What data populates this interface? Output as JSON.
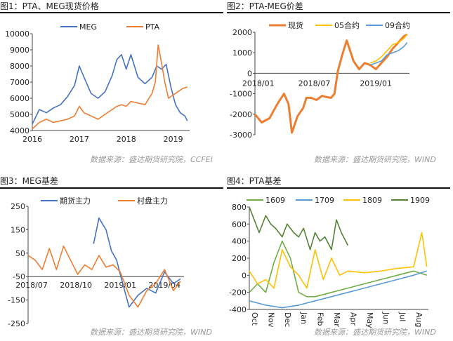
{
  "figures": [
    {
      "title": "图1：PTA、MEG现货价格"
    },
    {
      "title": "图2：PTA-MEG价差"
    },
    {
      "title": "图3：MEG基差"
    },
    {
      "title": "图4：PTA基差"
    }
  ],
  "sources": [
    "数据来源：盛达期货研究院，CCFEI",
    "数据来源：盛达期货研究院，WIND",
    "数据来源：盛达期货研究院，WIND",
    "数据来源：盛达期货研究院，WIND"
  ],
  "chart_data": [
    {
      "type": "line",
      "title": "",
      "ylim": [
        4000,
        10000
      ],
      "yticks": [
        "10000",
        "9000",
        "8000",
        "7000",
        "6000",
        "5000",
        "4000"
      ],
      "xticks": [
        "2016",
        "2017",
        "2018",
        "2019"
      ],
      "legend_position": "top",
      "series": [
        {
          "name": "MEG",
          "color": "#4472C4",
          "x": [
            2016.0,
            2016.15,
            2016.3,
            2016.45,
            2016.6,
            2016.75,
            2016.9,
            2017.0,
            2017.1,
            2017.25,
            2017.4,
            2017.55,
            2017.7,
            2017.8,
            2017.9,
            2018.0,
            2018.1,
            2018.25,
            2018.4,
            2018.55,
            2018.65,
            2018.75,
            2018.85,
            2018.95,
            2019.05,
            2019.15,
            2019.25,
            2019.3
          ],
          "y": [
            4400,
            5300,
            5100,
            5400,
            5600,
            6100,
            6800,
            8000,
            7300,
            6300,
            6000,
            6400,
            7400,
            8400,
            8700,
            7800,
            8700,
            7300,
            6900,
            7300,
            8000,
            7800,
            8100,
            6700,
            5600,
            5100,
            4900,
            4600
          ]
        },
        {
          "name": "PTA",
          "color": "#ED7D31",
          "x": [
            2016.0,
            2016.15,
            2016.3,
            2016.45,
            2016.6,
            2016.75,
            2016.9,
            2017.0,
            2017.1,
            2017.25,
            2017.4,
            2017.55,
            2017.7,
            2017.8,
            2017.9,
            2018.0,
            2018.1,
            2018.25,
            2018.4,
            2018.55,
            2018.62,
            2018.68,
            2018.75,
            2018.82,
            2018.9,
            2019.0,
            2019.1,
            2019.2,
            2019.3
          ],
          "y": [
            4100,
            4500,
            4700,
            4500,
            4600,
            4700,
            4900,
            5500,
            5100,
            4900,
            4700,
            5000,
            5300,
            5500,
            5600,
            5500,
            5800,
            5700,
            5600,
            6300,
            7000,
            9300,
            8200,
            7000,
            6000,
            6200,
            6400,
            6600,
            6700
          ]
        }
      ]
    },
    {
      "type": "line",
      "title": "",
      "ylim": [
        -3000,
        2000
      ],
      "yticks": [
        "2000",
        "1000",
        "0",
        "-1000",
        "-2000",
        "-3000"
      ],
      "xticks": [
        "2018/01",
        "2018/07",
        "2019/01"
      ],
      "legend_position": "top",
      "series": [
        {
          "name": "现货",
          "color": "#ED7D31",
          "x": [
            2017.92,
            2017.98,
            2018.05,
            2018.12,
            2018.18,
            2018.22,
            2018.25,
            2018.3,
            2018.35,
            2018.38,
            2018.42,
            2018.47,
            2018.52,
            2018.55,
            2018.6,
            2018.63,
            2018.66,
            2018.7,
            2018.74,
            2018.8,
            2018.85,
            2018.9,
            2018.95,
            2019.0,
            2019.05,
            2019.1,
            2019.15,
            2019.2,
            2019.25,
            2019.28
          ],
          "y": [
            -2000,
            -2400,
            -2200,
            -1500,
            -1000,
            -1500,
            -2900,
            -2100,
            -1700,
            -1200,
            -1200,
            -1300,
            -1100,
            -1150,
            -1200,
            -1000,
            100,
            900,
            1600,
            600,
            200,
            500,
            400,
            200,
            500,
            800,
            1200,
            1500,
            1800,
            1900
          ]
        },
        {
          "name": "05合约",
          "color": "#FFC000",
          "x": [
            2018.95,
            2019.0,
            2019.05,
            2019.1,
            2019.15,
            2019.2,
            2019.25,
            2019.28
          ],
          "y": [
            500,
            600,
            800,
            1100,
            1400,
            1500,
            1700,
            1900
          ]
        },
        {
          "name": "09合约",
          "color": "#5B9BD5",
          "x": [
            2018.95,
            2019.0,
            2019.05,
            2019.1,
            2019.15,
            2019.2,
            2019.25,
            2019.28
          ],
          "y": [
            400,
            500,
            600,
            900,
            1000,
            1100,
            1300,
            1500
          ]
        }
      ]
    },
    {
      "type": "line",
      "title": "",
      "ylim": [
        -250,
        250
      ],
      "yticks": [
        "250",
        "150",
        "50",
        "-50",
        "-150",
        "-250"
      ],
      "xticks": [
        "2018/07",
        "2018/10",
        "2019/01",
        "2019/04"
      ],
      "legend_position": "top",
      "series": [
        {
          "name": "期货主力",
          "color": "#4472C4",
          "x": [
            2018.85,
            2018.88,
            2018.92,
            2018.95,
            2018.98,
            2019.0,
            2019.05,
            2019.1,
            2019.15,
            2019.2,
            2019.25,
            2019.3,
            2019.34
          ],
          "y": [
            90,
            200,
            150,
            60,
            20,
            -40,
            -180,
            -130,
            -100,
            -120,
            -30,
            -80,
            -60
          ]
        },
        {
          "name": "村盘主力",
          "color": "#ED7D31",
          "x": [
            2018.48,
            2018.52,
            2018.56,
            2018.6,
            2018.64,
            2018.68,
            2018.72,
            2018.76,
            2018.8,
            2018.84,
            2018.88,
            2018.92,
            2018.96,
            2019.0,
            2019.05,
            2019.1,
            2019.15,
            2019.2,
            2019.25,
            2019.3,
            2019.34
          ],
          "y": [
            40,
            20,
            -20,
            70,
            -20,
            80,
            20,
            -40,
            0,
            -20,
            40,
            -10,
            0,
            -30,
            -130,
            -180,
            -110,
            -80,
            -20,
            -110,
            -70
          ]
        }
      ]
    },
    {
      "type": "line",
      "title": "",
      "ylim": [
        -400,
        800
      ],
      "yticks": [
        "800",
        "600",
        "400",
        "200",
        "0",
        "-200",
        "-400"
      ],
      "xticks": [
        "Oct",
        "Nov",
        "Dec",
        "Jan",
        "Feb",
        "Mar",
        "Apr",
        "May",
        "Jun",
        "Jul",
        "Aug"
      ],
      "legend_position": "top",
      "series": [
        {
          "name": "1609",
          "color": "#70AD47",
          "x": [
            0,
            0.5,
            1,
            1.5,
            2,
            2.5,
            3,
            3.5,
            4,
            5,
            6,
            7,
            8,
            9,
            10,
            10.8
          ],
          "y": [
            -200,
            -100,
            -200,
            150,
            400,
            200,
            -200,
            -250,
            -250,
            -200,
            -150,
            -100,
            -50,
            0,
            50,
            0
          ]
        },
        {
          "name": "1709",
          "color": "#5B9BD5",
          "x": [
            0,
            1,
            2,
            3,
            4,
            5,
            6,
            7,
            8,
            9,
            10,
            10.8
          ],
          "y": [
            -300,
            -350,
            -380,
            -350,
            -300,
            -250,
            -200,
            -150,
            -100,
            -50,
            0,
            50
          ]
        },
        {
          "name": "1809",
          "color": "#FFC000",
          "x": [
            0,
            0.5,
            1,
            1.5,
            2,
            2.5,
            3,
            3.5,
            4,
            4.5,
            5,
            5.5,
            6,
            7,
            8,
            9,
            10,
            10.5,
            10.8
          ],
          "y": [
            50,
            -100,
            -50,
            -150,
            300,
            100,
            0,
            -150,
            300,
            -50,
            200,
            0,
            50,
            30,
            50,
            80,
            100,
            500,
            100
          ]
        },
        {
          "name": "1909",
          "color": "#548235",
          "x": [
            0,
            0.3,
            0.6,
            1,
            1.3,
            1.6,
            2,
            2.3,
            2.7,
            3,
            3.3,
            3.7,
            4,
            4.3,
            4.6,
            5,
            5.3,
            5.6,
            6
          ],
          "y": [
            800,
            650,
            500,
            700,
            600,
            550,
            450,
            600,
            500,
            450,
            550,
            300,
            500,
            400,
            450,
            300,
            650,
            500,
            350
          ]
        }
      ]
    }
  ]
}
